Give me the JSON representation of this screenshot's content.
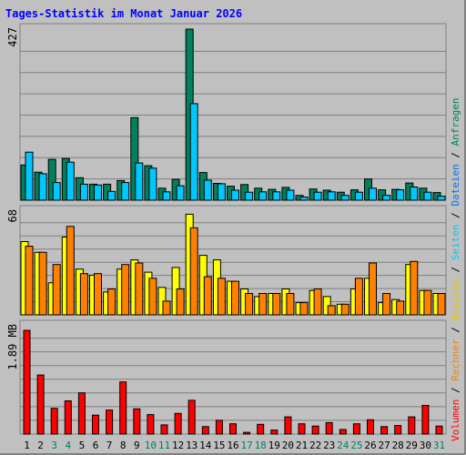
{
  "title": "Tages-Statistik im Monat Januar 2026",
  "colors": {
    "background": "#c0c0c0",
    "grid": "#808080",
    "title": "#0000ff",
    "anfragen": "#00805c",
    "dateien": "#00c8ff",
    "seiten": "#00ccff",
    "besuche": "#ffff00",
    "rechner": "#ff8000",
    "volumen": "#ff0000",
    "weekend_label": "#00805c",
    "weekday_label": "#000000"
  },
  "legend_right": {
    "volumen": "Volumen",
    "rechner": "Rechner",
    "besuche": "Besuche",
    "seiten": "Seiten",
    "dateien": "Dateien",
    "anfragen": "Anfragen",
    "sep": "/"
  },
  "chart_data": [
    {
      "type": "bar",
      "panel": "top",
      "ymax_label": "427",
      "ylim": [
        0,
        427
      ],
      "categories": [
        "1",
        "2",
        "3",
        "4",
        "5",
        "6",
        "7",
        "8",
        "9",
        "10",
        "11",
        "12",
        "13",
        "14",
        "15",
        "16",
        "17",
        "18",
        "19",
        "20",
        "21",
        "22",
        "23",
        "24",
        "25",
        "26",
        "27",
        "28",
        "29",
        "30",
        "31"
      ],
      "weekend_days": [
        "3",
        "4",
        "10",
        "11",
        "17",
        "18",
        "24",
        "25",
        "31"
      ],
      "series": [
        {
          "name": "Anfragen",
          "values": [
            88,
            70,
            102,
            104,
            56,
            40,
            40,
            49,
            206,
            86,
            30,
            52,
            427,
            69,
            42,
            35,
            39,
            30,
            27,
            32,
            12,
            28,
            25,
            20,
            26,
            53,
            26,
            27,
            43,
            30,
            19
          ]
        },
        {
          "name": "Dateien",
          "values": [
            120,
            66,
            44,
            95,
            40,
            38,
            22,
            44,
            93,
            80,
            21,
            36,
            241,
            50,
            41,
            25,
            20,
            21,
            21,
            25,
            8,
            20,
            21,
            12,
            20,
            30,
            12,
            26,
            33,
            20,
            10
          ]
        }
      ]
    },
    {
      "type": "bar",
      "panel": "middle",
      "ymax_label": "68",
      "ylim": [
        0,
        68
      ],
      "series": [
        {
          "name": "Besuche",
          "values": [
            48,
            41,
            21,
            51,
            30,
            26,
            15,
            30,
            36,
            28,
            18,
            31,
            66,
            39,
            36,
            22,
            17,
            12,
            14,
            17,
            8,
            16,
            12,
            7,
            17,
            24,
            8,
            10,
            33,
            16,
            14
          ]
        },
        {
          "name": "Rechner",
          "values": [
            45,
            41,
            33,
            58,
            27,
            27,
            17,
            33,
            34,
            24,
            9,
            17,
            57,
            25,
            24,
            22,
            14,
            14,
            14,
            14,
            8,
            17,
            6,
            7,
            24,
            34,
            14,
            9,
            35,
            16,
            14
          ]
        }
      ]
    },
    {
      "type": "bar",
      "panel": "bottom",
      "ymax_label": "1.89 MB",
      "ylim": [
        0,
        1.89
      ],
      "series": [
        {
          "name": "Volumen",
          "values": [
            1.81,
            1.03,
            0.45,
            0.58,
            0.72,
            0.33,
            0.42,
            0.91,
            0.44,
            0.34,
            0.16,
            0.36,
            0.59,
            0.13,
            0.24,
            0.18,
            0.03,
            0.17,
            0.07,
            0.3,
            0.18,
            0.14,
            0.2,
            0.08,
            0.18,
            0.25,
            0.13,
            0.15,
            0.3,
            0.5,
            0.14
          ]
        }
      ]
    }
  ]
}
